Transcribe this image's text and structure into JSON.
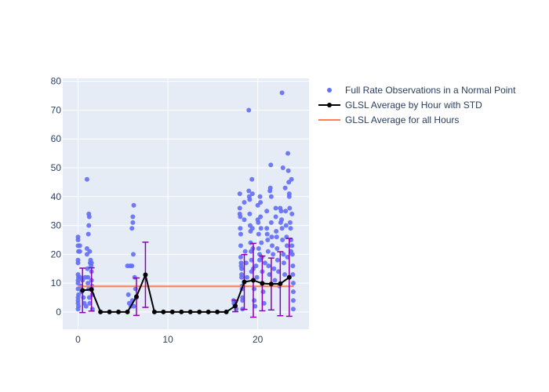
{
  "chart_data": {
    "type": "scatter",
    "title": "",
    "xlabel": "",
    "ylabel": "",
    "xlim": [
      -1.7,
      25.7
    ],
    "ylim": [
      -6,
      81
    ],
    "x_ticks": [
      0,
      10,
      20
    ],
    "y_ticks": [
      0,
      10,
      20,
      30,
      40,
      50,
      60,
      70,
      80
    ],
    "grid": true,
    "legend_position": "top-right",
    "colors": {
      "plot_bg": "#e5ecf6",
      "grid": "#ffffff",
      "observations": "#636efa",
      "average_line": "#000000",
      "error_bars": "#8b00b4",
      "overall_average": "#ff7f50",
      "text": "#2a3f5f"
    },
    "series": [
      {
        "name": "Full Rate Observations in a Normal Point",
        "kind": "scatter",
        "points": [
          [
            0.0,
            26
          ],
          [
            0.0,
            25
          ],
          [
            0.0,
            23
          ],
          [
            0.05,
            21
          ],
          [
            0.0,
            18
          ],
          [
            0.0,
            17
          ],
          [
            0.0,
            13
          ],
          [
            0.05,
            12
          ],
          [
            0.0,
            11
          ],
          [
            0.0,
            10
          ],
          [
            0.0,
            8
          ],
          [
            0.05,
            6
          ],
          [
            0.0,
            5
          ],
          [
            0.0,
            4
          ],
          [
            0.0,
            3
          ],
          [
            0.05,
            2
          ],
          [
            0.0,
            1
          ],
          [
            0.2,
            23
          ],
          [
            0.2,
            21
          ],
          [
            0.2,
            12
          ],
          [
            0.3,
            9
          ],
          [
            0.4,
            7
          ],
          [
            0.5,
            11
          ],
          [
            0.6,
            5
          ],
          [
            0.7,
            3
          ],
          [
            0.8,
            12
          ],
          [
            0.9,
            2
          ],
          [
            1.0,
            46
          ],
          [
            1.0,
            22
          ],
          [
            1.0,
            20
          ],
          [
            1.05,
            15
          ],
          [
            1.1,
            12
          ],
          [
            1.1,
            10
          ],
          [
            1.15,
            27
          ],
          [
            1.2,
            30
          ],
          [
            1.2,
            8
          ],
          [
            1.2,
            34
          ],
          [
            1.25,
            33
          ],
          [
            1.25,
            5
          ],
          [
            1.3,
            21
          ],
          [
            1.3,
            3
          ],
          [
            1.35,
            17
          ],
          [
            1.4,
            18
          ],
          [
            1.45,
            16
          ],
          [
            1.5,
            17
          ],
          [
            1.5,
            14
          ],
          [
            1.5,
            11
          ],
          [
            1.55,
            9
          ],
          [
            1.6,
            6
          ],
          [
            1.6,
            1
          ],
          [
            5.5,
            16
          ],
          [
            5.6,
            6
          ],
          [
            5.7,
            3
          ],
          [
            5.8,
            16
          ],
          [
            5.9,
            2
          ],
          [
            6.0,
            29
          ],
          [
            6.0,
            16
          ],
          [
            6.05,
            4
          ],
          [
            6.1,
            31
          ],
          [
            6.1,
            33
          ],
          [
            6.15,
            20
          ],
          [
            6.2,
            37
          ],
          [
            6.2,
            2
          ],
          [
            6.3,
            12
          ],
          [
            6.4,
            8
          ],
          [
            6.5,
            5
          ],
          [
            17.3,
            4
          ],
          [
            17.35,
            3
          ],
          [
            17.45,
            2
          ],
          [
            17.6,
            1
          ],
          [
            18.0,
            41
          ],
          [
            18.0,
            36
          ],
          [
            18.0,
            34
          ],
          [
            18.05,
            33
          ],
          [
            18.05,
            29
          ],
          [
            18.1,
            27
          ],
          [
            18.1,
            23
          ],
          [
            18.1,
            19
          ],
          [
            18.15,
            17
          ],
          [
            18.15,
            16
          ],
          [
            18.2,
            15
          ],
          [
            18.2,
            13
          ],
          [
            18.2,
            12
          ],
          [
            18.25,
            9
          ],
          [
            18.25,
            8
          ],
          [
            18.3,
            5
          ],
          [
            18.3,
            4
          ],
          [
            18.3,
            1
          ],
          [
            18.5,
            38
          ],
          [
            18.5,
            32
          ],
          [
            18.6,
            21
          ],
          [
            18.7,
            17
          ],
          [
            18.8,
            12
          ],
          [
            19.0,
            70
          ],
          [
            19.0,
            42
          ],
          [
            19.05,
            40
          ],
          [
            19.1,
            39
          ],
          [
            19.1,
            34
          ],
          [
            19.15,
            30
          ],
          [
            19.2,
            28
          ],
          [
            19.2,
            24
          ],
          [
            19.25,
            21
          ],
          [
            19.3,
            18
          ],
          [
            19.3,
            14
          ],
          [
            19.35,
            46
          ],
          [
            19.4,
            41
          ],
          [
            19.4,
            29
          ],
          [
            19.45,
            22
          ],
          [
            19.5,
            15
          ],
          [
            19.5,
            11
          ],
          [
            19.6,
            8
          ],
          [
            19.6,
            4
          ],
          [
            19.7,
            2
          ],
          [
            19.8,
            16
          ],
          [
            19.9,
            12
          ],
          [
            20.0,
            37
          ],
          [
            20.0,
            32
          ],
          [
            20.05,
            31
          ],
          [
            20.1,
            27
          ],
          [
            20.1,
            22
          ],
          [
            20.2,
            20
          ],
          [
            20.2,
            18
          ],
          [
            20.25,
            40
          ],
          [
            20.3,
            38
          ],
          [
            20.3,
            33
          ],
          [
            20.35,
            29
          ],
          [
            20.4,
            24
          ],
          [
            20.45,
            19
          ],
          [
            20.5,
            14
          ],
          [
            20.5,
            10
          ],
          [
            20.6,
            7
          ],
          [
            20.7,
            3
          ],
          [
            20.8,
            17
          ],
          [
            21.0,
            35
          ],
          [
            21.0,
            29
          ],
          [
            21.05,
            27
          ],
          [
            21.1,
            25
          ],
          [
            21.15,
            21
          ],
          [
            21.2,
            16
          ],
          [
            21.3,
            13
          ],
          [
            21.35,
            42
          ],
          [
            21.4,
            43
          ],
          [
            21.45,
            51
          ],
          [
            21.5,
            40
          ],
          [
            21.5,
            31
          ],
          [
            21.55,
            26
          ],
          [
            21.6,
            23
          ],
          [
            21.7,
            20
          ],
          [
            21.8,
            15
          ],
          [
            21.9,
            11
          ],
          [
            22.0,
            36
          ],
          [
            22.0,
            33
          ],
          [
            22.05,
            28
          ],
          [
            22.1,
            26
          ],
          [
            22.15,
            22
          ],
          [
            22.2,
            18
          ],
          [
            22.3,
            14
          ],
          [
            22.4,
            9
          ],
          [
            22.5,
            36
          ],
          [
            22.55,
            31
          ],
          [
            22.6,
            35
          ],
          [
            22.65,
            32
          ],
          [
            22.7,
            29
          ],
          [
            22.7,
            76
          ],
          [
            22.75,
            25
          ],
          [
            22.8,
            50
          ],
          [
            22.85,
            20
          ],
          [
            22.9,
            17
          ],
          [
            23.0,
            13
          ],
          [
            23.05,
            43
          ],
          [
            23.1,
            35
          ],
          [
            23.15,
            30
          ],
          [
            23.2,
            26
          ],
          [
            23.25,
            23
          ],
          [
            23.3,
            19
          ],
          [
            23.35,
            55
          ],
          [
            23.4,
            49
          ],
          [
            23.45,
            45
          ],
          [
            23.5,
            41
          ],
          [
            23.5,
            40
          ],
          [
            23.55,
            36
          ],
          [
            23.6,
            31
          ],
          [
            23.65,
            29
          ],
          [
            23.7,
            25
          ],
          [
            23.7,
            21
          ],
          [
            23.75,
            46
          ],
          [
            23.8,
            34
          ],
          [
            23.8,
            23
          ],
          [
            23.85,
            20
          ],
          [
            23.9,
            16
          ],
          [
            23.9,
            13
          ],
          [
            23.95,
            10
          ],
          [
            23.95,
            7
          ],
          [
            23.95,
            4
          ],
          [
            23.95,
            1
          ]
        ]
      },
      {
        "name": "GLSL Average by Hour with STD",
        "kind": "line_with_errorbars",
        "x": [
          0.5,
          1.5,
          2.5,
          3.5,
          4.5,
          5.5,
          6.5,
          7.5,
          8.5,
          9.5,
          10.5,
          11.5,
          12.5,
          13.5,
          14.5,
          15.5,
          16.5,
          17.5,
          18.5,
          19.5,
          20.5,
          21.5,
          22.5,
          23.5
        ],
        "y": [
          7.5,
          7.8,
          0,
          0,
          0,
          0,
          5.3,
          12.9,
          0,
          0,
          0,
          0,
          0,
          0,
          0,
          0,
          0,
          2.1,
          10.4,
          11.0,
          9.9,
          9.7,
          9.8,
          12.0
        ],
        "error": [
          7.7,
          7.5,
          0,
          0,
          0,
          0,
          6.5,
          11.3,
          0,
          0,
          0,
          0,
          0,
          0,
          0,
          0,
          0,
          2.0,
          9.5,
          12.8,
          9.5,
          9.0,
          11.1,
          13.5
        ]
      },
      {
        "name": "GLSL Average for all Hours",
        "kind": "hline",
        "y": 8.9,
        "x_range": [
          0.0,
          24.0
        ]
      }
    ]
  }
}
